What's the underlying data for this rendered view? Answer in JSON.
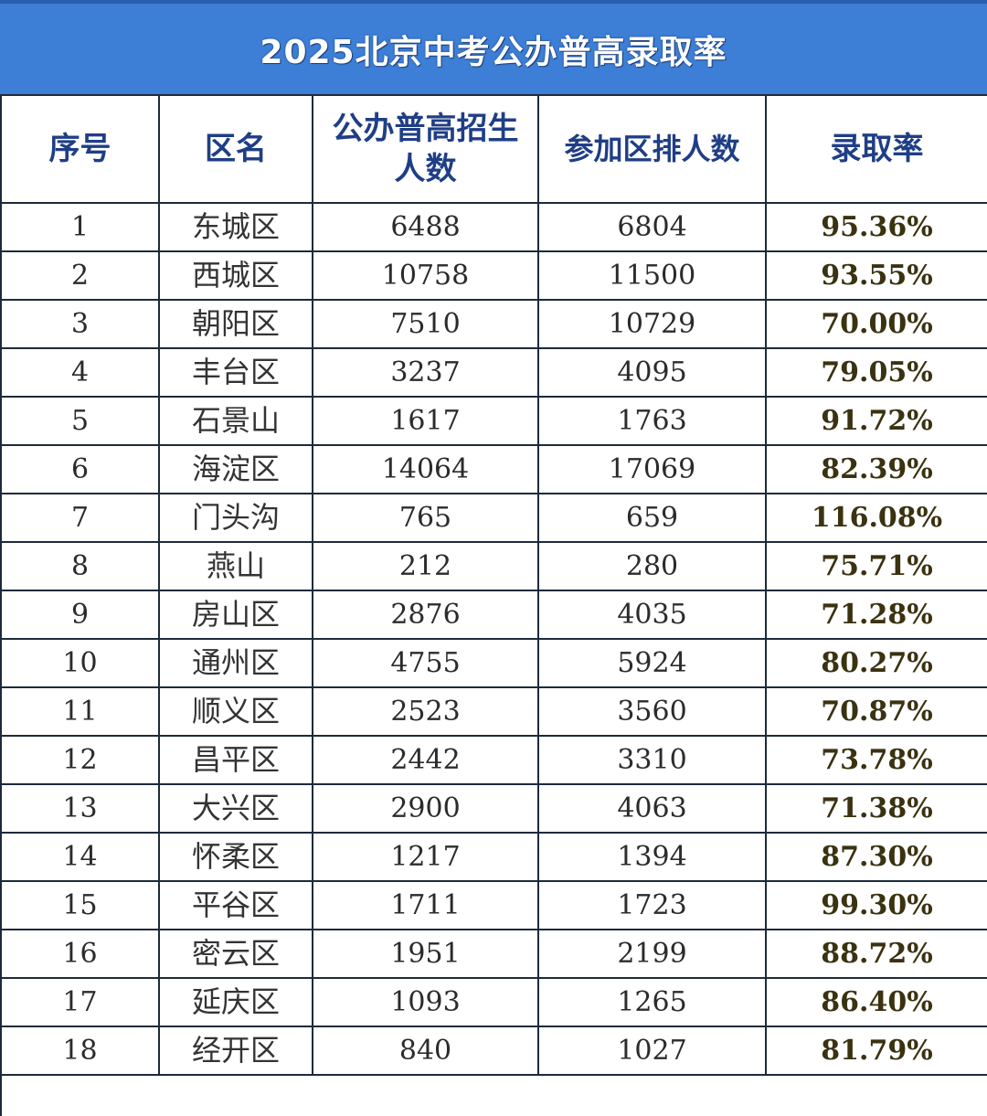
{
  "title": "2025北京中考公办普高录取率",
  "headers": {
    "index": "序号",
    "district": "区名",
    "enrollment": "公办普高招生人数",
    "participants": "参加区排人数",
    "rate": "录取率"
  },
  "rows": [
    {
      "index": "1",
      "district": "东城区",
      "enrollment": "6488",
      "participants": "6804",
      "rate": "95.36%"
    },
    {
      "index": "2",
      "district": "西城区",
      "enrollment": "10758",
      "participants": "11500",
      "rate": "93.55%"
    },
    {
      "index": "3",
      "district": "朝阳区",
      "enrollment": "7510",
      "participants": "10729",
      "rate": "70.00%"
    },
    {
      "index": "4",
      "district": "丰台区",
      "enrollment": "3237",
      "participants": "4095",
      "rate": "79.05%"
    },
    {
      "index": "5",
      "district": "石景山",
      "enrollment": "1617",
      "participants": "1763",
      "rate": "91.72%"
    },
    {
      "index": "6",
      "district": "海淀区",
      "enrollment": "14064",
      "participants": "17069",
      "rate": "82.39%"
    },
    {
      "index": "7",
      "district": "门头沟",
      "enrollment": "765",
      "participants": "659",
      "rate": "116.08%"
    },
    {
      "index": "8",
      "district": "燕山",
      "enrollment": "212",
      "participants": "280",
      "rate": "75.71%"
    },
    {
      "index": "9",
      "district": "房山区",
      "enrollment": "2876",
      "participants": "4035",
      "rate": "71.28%"
    },
    {
      "index": "10",
      "district": "通州区",
      "enrollment": "4755",
      "participants": "5924",
      "rate": "80.27%"
    },
    {
      "index": "11",
      "district": "顺义区",
      "enrollment": "2523",
      "participants": "3560",
      "rate": "70.87%"
    },
    {
      "index": "12",
      "district": "昌平区",
      "enrollment": "2442",
      "participants": "3310",
      "rate": "73.78%"
    },
    {
      "index": "13",
      "district": "大兴区",
      "enrollment": "2900",
      "participants": "4063",
      "rate": "71.38%"
    },
    {
      "index": "14",
      "district": "怀柔区",
      "enrollment": "1217",
      "participants": "1394",
      "rate": "87.30%"
    },
    {
      "index": "15",
      "district": "平谷区",
      "enrollment": "1711",
      "participants": "1723",
      "rate": "99.30%"
    },
    {
      "index": "16",
      "district": "密云区",
      "enrollment": "1951",
      "participants": "2199",
      "rate": "88.72%"
    },
    {
      "index": "17",
      "district": "延庆区",
      "enrollment": "1093",
      "participants": "1265",
      "rate": "86.40%"
    },
    {
      "index": "18",
      "district": "经开区",
      "enrollment": "840",
      "participants": "1027",
      "rate": "81.79%"
    }
  ],
  "colors": {
    "title_bar": "#3d7fd6",
    "header_text": "#1f3e86",
    "grid_line": "#1e2a3a"
  }
}
